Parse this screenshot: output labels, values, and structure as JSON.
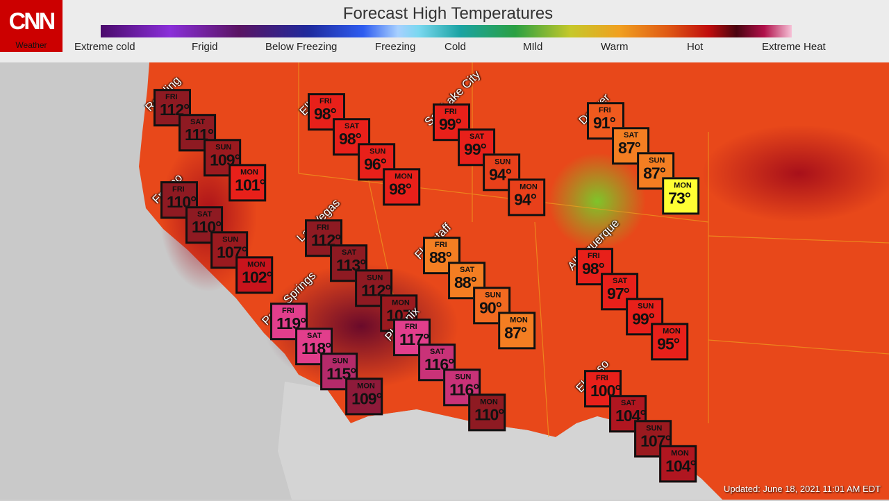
{
  "header": {
    "logo_text": "CNN",
    "logo_subtitle": "Weather",
    "title": "Forecast High Temperatures",
    "scale_labels": [
      "Extreme cold",
      "Frigid",
      "Below Freezing",
      "Freezing",
      "Cold",
      "MIld",
      "Warm",
      "Hot",
      "Extreme Heat"
    ]
  },
  "colors": {
    "brand": "#cc0000",
    "hot_red": "#e8201a",
    "dark_red": "#8e1a22",
    "deep_maroon": "#731025",
    "orange": "#f47e22",
    "yellow": "#ffff33",
    "magenta": "#e23e8c"
  },
  "cities": [
    {
      "name": "Redding",
      "days": [
        {
          "day": "FRI",
          "temp": "112°",
          "color": "#8e1a22"
        },
        {
          "day": "SAT",
          "temp": "111°",
          "color": "#8e1a22"
        },
        {
          "day": "SUN",
          "temp": "109°",
          "color": "#9a1a1f"
        },
        {
          "day": "MON",
          "temp": "101°",
          "color": "#e8201a"
        }
      ]
    },
    {
      "name": "Elko",
      "days": [
        {
          "day": "FRI",
          "temp": "98°",
          "color": "#e8201a"
        },
        {
          "day": "SAT",
          "temp": "98°",
          "color": "#e8201a"
        },
        {
          "day": "SUN",
          "temp": "96°",
          "color": "#e8201a"
        },
        {
          "day": "MON",
          "temp": "98°",
          "color": "#e8201a"
        }
      ]
    },
    {
      "name": "Salt Lake City",
      "days": [
        {
          "day": "FRI",
          "temp": "99°",
          "color": "#e8201a"
        },
        {
          "day": "SAT",
          "temp": "99°",
          "color": "#e8201a"
        },
        {
          "day": "SUN",
          "temp": "94°",
          "color": "#e8401a"
        },
        {
          "day": "MON",
          "temp": "94°",
          "color": "#e8401a"
        }
      ]
    },
    {
      "name": "Denver",
      "days": [
        {
          "day": "FRI",
          "temp": "91°",
          "color": "#f05a1e"
        },
        {
          "day": "SAT",
          "temp": "87°",
          "color": "#f47e22"
        },
        {
          "day": "SUN",
          "temp": "87°",
          "color": "#f47e22"
        },
        {
          "day": "MON",
          "temp": "73°",
          "color": "#ffff33"
        }
      ]
    },
    {
      "name": "Fresno",
      "days": [
        {
          "day": "FRI",
          "temp": "110°",
          "color": "#8e1a22"
        },
        {
          "day": "SAT",
          "temp": "110°",
          "color": "#8e1a22"
        },
        {
          "day": "SUN",
          "temp": "107°",
          "color": "#9a1a1f"
        },
        {
          "day": "MON",
          "temp": "102°",
          "color": "#c8141c"
        }
      ]
    },
    {
      "name": "Las Vegas",
      "days": [
        {
          "day": "FRI",
          "temp": "112°",
          "color": "#8e1a22"
        },
        {
          "day": "SAT",
          "temp": "113°",
          "color": "#8e1a22"
        },
        {
          "day": "SUN",
          "temp": "112°",
          "color": "#8e1a22"
        },
        {
          "day": "MON",
          "temp": "107°",
          "color": "#9a1a1f"
        }
      ]
    },
    {
      "name": "Flagstaff",
      "days": [
        {
          "day": "FRI",
          "temp": "88°",
          "color": "#f47e22"
        },
        {
          "day": "SAT",
          "temp": "88°",
          "color": "#f47e22"
        },
        {
          "day": "SUN",
          "temp": "90°",
          "color": "#f26a20"
        },
        {
          "day": "MON",
          "temp": "87°",
          "color": "#f47e22"
        }
      ]
    },
    {
      "name": "Albuquerque",
      "days": [
        {
          "day": "FRI",
          "temp": "98°",
          "color": "#e8201a"
        },
        {
          "day": "SAT",
          "temp": "97°",
          "color": "#e8201a"
        },
        {
          "day": "SUN",
          "temp": "99°",
          "color": "#e8201a"
        },
        {
          "day": "MON",
          "temp": "95°",
          "color": "#e8201a"
        }
      ]
    },
    {
      "name": "Palm Springs",
      "days": [
        {
          "day": "FRI",
          "temp": "119°",
          "color": "#e23e8c"
        },
        {
          "day": "SAT",
          "temp": "118°",
          "color": "#e23e8c"
        },
        {
          "day": "SUN",
          "temp": "115°",
          "color": "#b52a6a"
        },
        {
          "day": "MON",
          "temp": "109°",
          "color": "#8e1a3a"
        }
      ]
    },
    {
      "name": "Phoenix",
      "days": [
        {
          "day": "FRI",
          "temp": "117°",
          "color": "#e23e8c"
        },
        {
          "day": "SAT",
          "temp": "116°",
          "color": "#c93278"
        },
        {
          "day": "SUN",
          "temp": "116°",
          "color": "#c93278"
        },
        {
          "day": "MON",
          "temp": "110°",
          "color": "#8e1a22"
        }
      ]
    },
    {
      "name": "El Paso",
      "days": [
        {
          "day": "FRI",
          "temp": "100°",
          "color": "#e8201a"
        },
        {
          "day": "SAT",
          "temp": "104°",
          "color": "#b01620"
        },
        {
          "day": "SUN",
          "temp": "107°",
          "color": "#9a1a1f"
        },
        {
          "day": "MON",
          "temp": "104°",
          "color": "#b01620"
        }
      ]
    }
  ],
  "footer": {
    "updated": "Updated: June 18, 2021 11:01 AM EDT"
  }
}
